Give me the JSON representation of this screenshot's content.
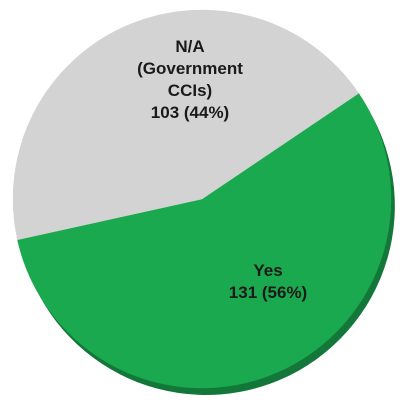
{
  "chart_data": {
    "type": "pie",
    "title": "",
    "slices": [
      {
        "label_lines": [
          "Yes",
          "131 (56%)"
        ],
        "value": 131,
        "percent": 56,
        "color": "#1aa94f",
        "shadow_color": "#13773a"
      },
      {
        "label_lines": [
          "N/A",
          "(Government",
          "CCIs)",
          "103 (44%)"
        ],
        "value": 103,
        "percent": 44,
        "color": "#d3d3d3",
        "shadow_color": "#9c9c9c"
      }
    ],
    "legend": "none"
  }
}
